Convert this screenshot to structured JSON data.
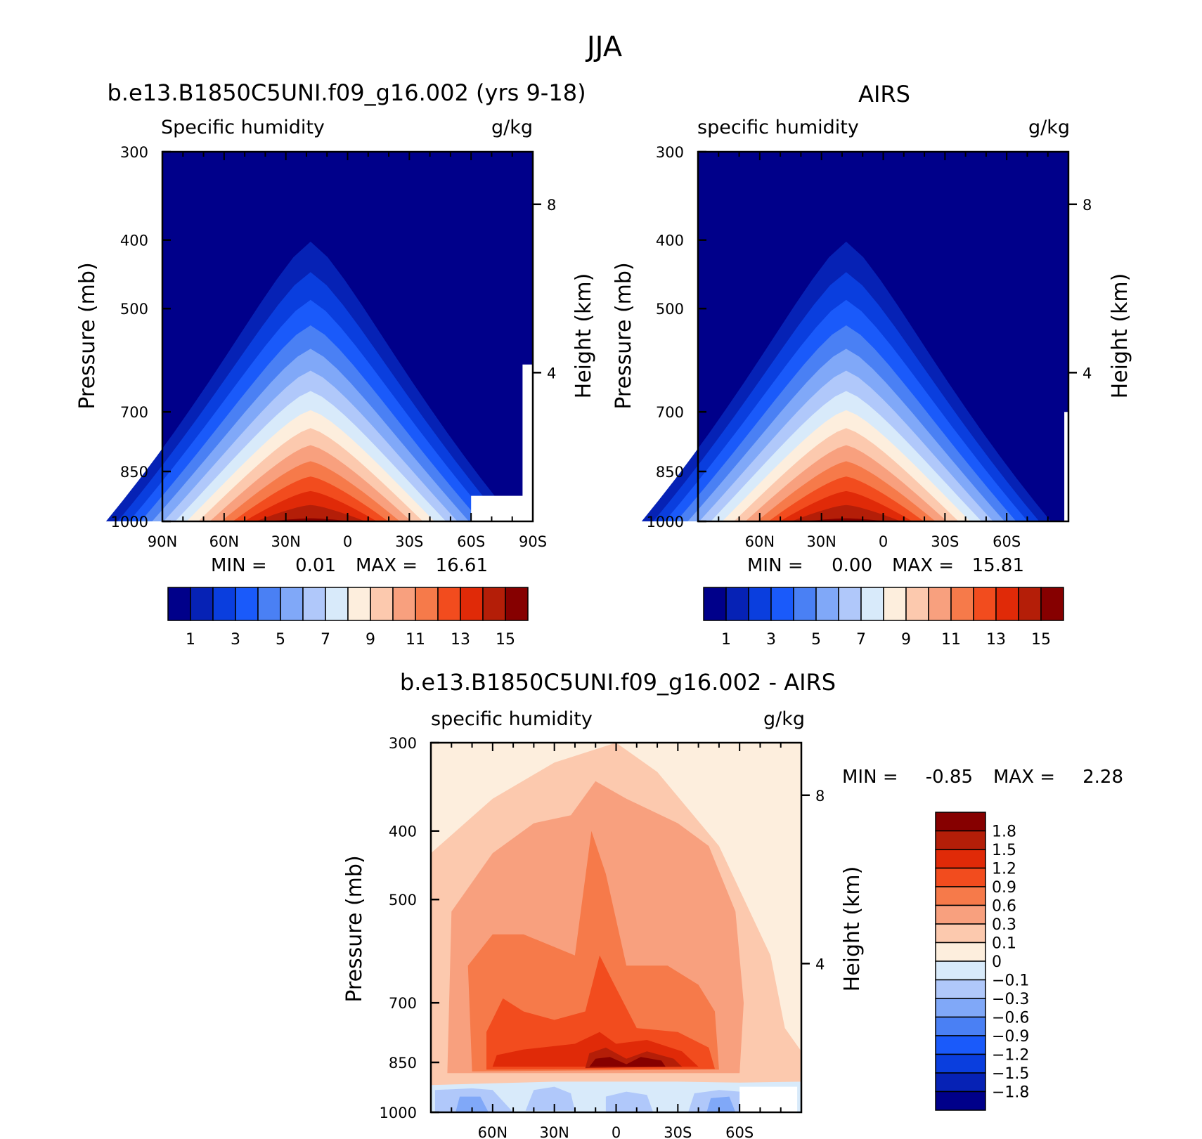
{
  "figure": {
    "title": "JJA"
  },
  "colors": {
    "abs": [
      "#00008a",
      "#0622b5",
      "#0a3ede",
      "#1a5afa",
      "#4a80f4",
      "#80a8f8",
      "#b0c8fa",
      "#d8eafa",
      "#fdeedd",
      "#fcc9ae",
      "#f8a07e",
      "#f67a4a",
      "#f24c1e",
      "#e02a08",
      "#b41e08",
      "#860000"
    ],
    "diff": [
      "#00008a",
      "#0622b5",
      "#0a3ede",
      "#1a5afa",
      "#4a80f4",
      "#80a8f8",
      "#b0c8fa",
      "#d8eafa",
      "#fdeedd",
      "#fcc9ae",
      "#f8a07e",
      "#f67a4a",
      "#f24c1e",
      "#e02a08",
      "#b41e08",
      "#860000"
    ]
  },
  "chart_data": [
    {
      "type": "heatmap",
      "id": "model",
      "title": "b.e13.B1850C5UNI.f09_g16.002 (yrs 9-18)",
      "left_string": "Specific humidity",
      "right_string": "g/kg",
      "ylabel": "Pressure (mb)",
      "ylabel_right": "Height (km)",
      "x_ticks": [
        "90N",
        "60N",
        "30N",
        "0",
        "30S",
        "60S",
        "90S"
      ],
      "y_ticks": [
        "300",
        "400",
        "500",
        "700",
        "850",
        "1000"
      ],
      "y_right_ticks": [
        "8",
        "4"
      ],
      "min_label": "MIN =",
      "min_value": "0.01",
      "max_label": "MAX =",
      "max_value": "16.61",
      "colorbar_labels": [
        "1",
        "3",
        "5",
        "7",
        "9",
        "11",
        "13",
        "15"
      ],
      "levels": [
        1,
        2,
        3,
        4,
        5,
        6,
        7,
        8,
        9,
        10,
        11,
        12,
        13,
        14,
        15
      ],
      "ylim": [
        1000,
        300
      ],
      "xlim": [
        90,
        -90
      ]
    },
    {
      "type": "heatmap",
      "id": "obs",
      "title": "AIRS",
      "left_string": "specific humidity",
      "right_string": "g/kg",
      "ylabel": "Pressure (mb)",
      "ylabel_right": "Height (km)",
      "x_ticks": [
        "60N",
        "30N",
        "0",
        "30S",
        "60S"
      ],
      "y_ticks": [
        "300",
        "400",
        "500",
        "700",
        "850",
        "1000"
      ],
      "y_right_ticks": [
        "8",
        "4"
      ],
      "min_label": "MIN =",
      "min_value": "0.00",
      "max_label": "MAX =",
      "max_value": "15.81",
      "colorbar_labels": [
        "1",
        "3",
        "5",
        "7",
        "9",
        "11",
        "13",
        "15"
      ],
      "levels": [
        1,
        2,
        3,
        4,
        5,
        6,
        7,
        8,
        9,
        10,
        11,
        12,
        13,
        14,
        15
      ],
      "ylim": [
        1000,
        300
      ],
      "xlim": [
        90,
        -90
      ]
    },
    {
      "type": "heatmap",
      "id": "diff",
      "title": "b.e13.B1850C5UNI.f09_g16.002 - AIRS",
      "left_string": "specific humidity",
      "right_string": "g/kg",
      "ylabel": "Pressure (mb)",
      "ylabel_right": "Height (km)",
      "x_ticks": [
        "60N",
        "30N",
        "0",
        "30S",
        "60S"
      ],
      "y_ticks": [
        "300",
        "400",
        "500",
        "700",
        "850",
        "1000"
      ],
      "y_right_ticks": [
        "8",
        "4"
      ],
      "min_label": "MIN =",
      "min_value": "-0.85",
      "max_label": "MAX =",
      "max_value": "2.28",
      "colorbar_labels": [
        "1.8",
        "1.5",
        "1.2",
        "0.9",
        "0.6",
        "0.3",
        "0.1",
        "0",
        "-0.1",
        "-0.3",
        "-0.6",
        "-0.9",
        "-1.2",
        "-1.5",
        "-1.8"
      ],
      "levels": [
        -1.8,
        -1.5,
        -1.2,
        -0.9,
        -0.6,
        -0.3,
        -0.1,
        0,
        0.1,
        0.3,
        0.6,
        0.9,
        1.2,
        1.5,
        1.8
      ],
      "ylim": [
        1000,
        300
      ],
      "xlim": [
        90,
        -90
      ]
    }
  ]
}
